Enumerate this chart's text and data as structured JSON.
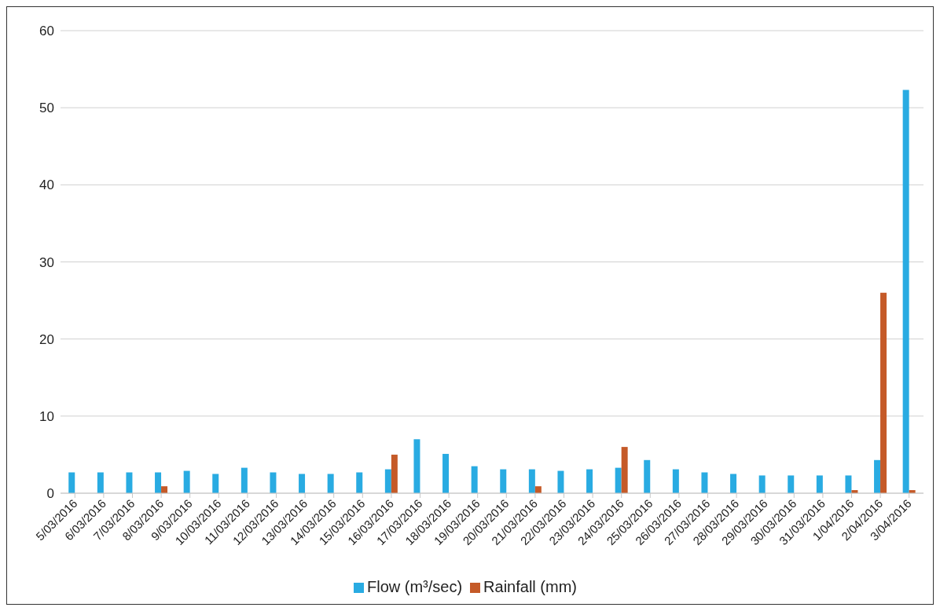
{
  "chart_data": {
    "type": "bar",
    "categories": [
      "5/03/2016",
      "6/03/2016",
      "7/03/2016",
      "8/03/2016",
      "9/03/2016",
      "10/03/2016",
      "11/03/2016",
      "12/03/2016",
      "13/03/2016",
      "14/03/2016",
      "15/03/2016",
      "16/03/2016",
      "17/03/2016",
      "18/03/2016",
      "19/03/2016",
      "20/03/2016",
      "21/03/2016",
      "22/03/2016",
      "23/03/2016",
      "24/03/2016",
      "25/03/2016",
      "26/03/2016",
      "27/03/2016",
      "28/03/2016",
      "29/03/2016",
      "30/03/2016",
      "31/03/2016",
      "1/04/2016",
      "2/04/2016",
      "3/04/2016"
    ],
    "series": [
      {
        "name": "Flow (m³/sec)",
        "color": "#29abe2",
        "values": [
          2.7,
          2.7,
          2.7,
          2.7,
          2.9,
          2.5,
          3.3,
          2.7,
          2.5,
          2.5,
          2.7,
          3.1,
          7.0,
          5.1,
          3.5,
          3.1,
          3.1,
          2.9,
          3.1,
          3.3,
          4.3,
          3.1,
          2.7,
          2.5,
          2.3,
          2.3,
          2.3,
          2.3,
          4.3,
          52.3
        ]
      },
      {
        "name": "Rainfall (mm)",
        "color": "#c55a28",
        "values": [
          null,
          null,
          null,
          0.9,
          null,
          null,
          null,
          null,
          null,
          null,
          null,
          5.0,
          null,
          null,
          null,
          null,
          0.9,
          null,
          null,
          6.0,
          null,
          null,
          null,
          null,
          null,
          null,
          null,
          0.4,
          26.0,
          0.4
        ]
      }
    ],
    "ylim": [
      0,
      60
    ],
    "yticks": [
      0,
      10,
      20,
      30,
      40,
      50,
      60
    ],
    "grid": "y",
    "legend": "bottom"
  }
}
